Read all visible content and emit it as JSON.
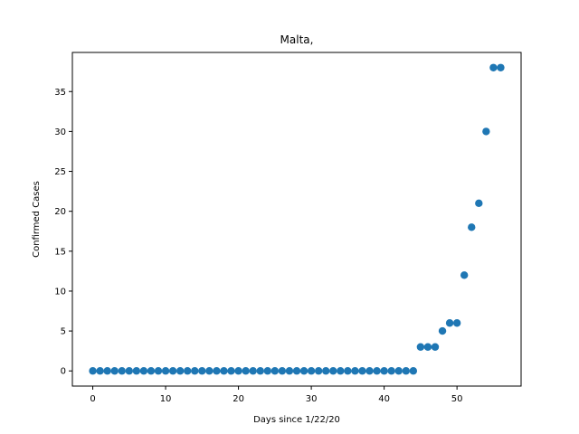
{
  "chart_data": {
    "type": "scatter",
    "title": "Malta,",
    "xlabel": "Days since 1/22/20",
    "ylabel": "Confirmed Cases",
    "xlim": [
      -2.8,
      58.8
    ],
    "ylim": [
      -1.9,
      39.9
    ],
    "xticks": [
      0,
      10,
      20,
      30,
      40,
      50
    ],
    "yticks": [
      0,
      5,
      10,
      15,
      20,
      25,
      30,
      35
    ],
    "grid": false,
    "series": [
      {
        "color": "#1f77b4",
        "x": [
          0,
          1,
          2,
          3,
          4,
          5,
          6,
          7,
          8,
          9,
          10,
          11,
          12,
          13,
          14,
          15,
          16,
          17,
          18,
          19,
          20,
          21,
          22,
          23,
          24,
          25,
          26,
          27,
          28,
          29,
          30,
          31,
          32,
          33,
          34,
          35,
          36,
          37,
          38,
          39,
          40,
          41,
          42,
          43,
          44,
          45,
          46,
          47,
          48,
          49,
          50,
          51,
          52,
          53,
          54,
          55,
          56
        ],
        "y": [
          0,
          0,
          0,
          0,
          0,
          0,
          0,
          0,
          0,
          0,
          0,
          0,
          0,
          0,
          0,
          0,
          0,
          0,
          0,
          0,
          0,
          0,
          0,
          0,
          0,
          0,
          0,
          0,
          0,
          0,
          0,
          0,
          0,
          0,
          0,
          0,
          0,
          0,
          0,
          0,
          0,
          0,
          0,
          0,
          0,
          3,
          3,
          3,
          5,
          6,
          6,
          12,
          18,
          21,
          30,
          38,
          38
        ]
      }
    ]
  }
}
